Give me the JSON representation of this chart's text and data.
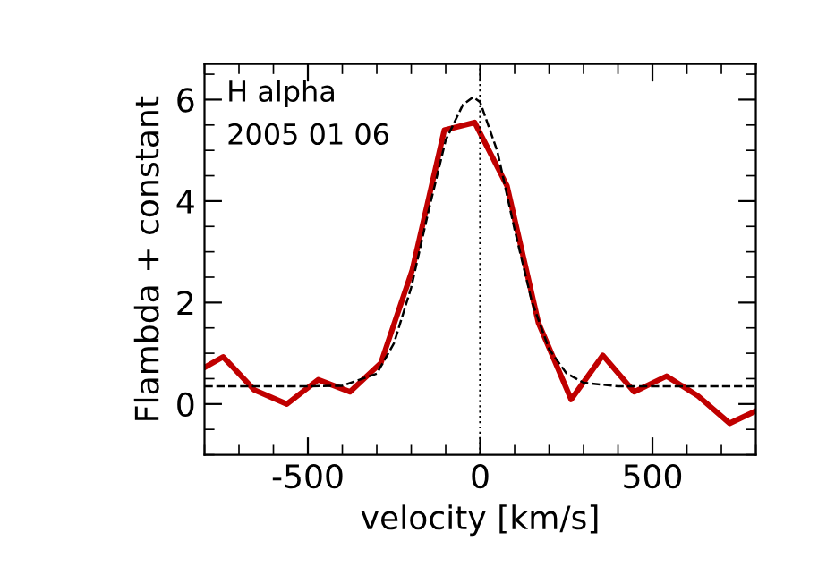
{
  "chart_data": {
    "type": "line",
    "xlabel": "velocity [km/s]",
    "ylabel": "Flambda + constant",
    "annotations": [
      "H alpha",
      "2005 01 06"
    ],
    "series": [
      {
        "color": "#c00000",
        "line_style": "solid",
        "x": [
          -800,
          -746,
          -656,
          -561,
          -470,
          -378,
          -288,
          -197,
          -104,
          -16,
          78,
          169,
          264,
          356,
          447,
          541,
          632,
          724,
          796
        ],
        "values": [
          0.72,
          0.93,
          0.28,
          0.0,
          0.48,
          0.24,
          0.81,
          2.64,
          5.4,
          5.55,
          4.3,
          1.6,
          0.09,
          0.96,
          0.24,
          0.55,
          0.16,
          -0.38,
          -0.15
        ]
      },
      {
        "color": "#000000",
        "line_style": "dashed",
        "x": [
          -800,
          -500,
          -400,
          -300,
          -250,
          -200,
          -150,
          -100,
          -50,
          -20,
          0,
          50,
          100,
          150,
          200,
          250,
          300,
          400,
          500,
          800
        ],
        "values": [
          0.35,
          0.35,
          0.36,
          0.6,
          1.2,
          2.3,
          3.8,
          5.2,
          5.9,
          6.05,
          5.95,
          4.98,
          3.44,
          2.02,
          1.08,
          0.61,
          0.42,
          0.35,
          0.35,
          0.35
        ]
      }
    ],
    "ref_lines": [
      {
        "axis": "x",
        "value": 0,
        "color": "#000000",
        "line_style": "dotted"
      }
    ],
    "xlim": [
      -800,
      800
    ],
    "xticks": [
      -500,
      0,
      500
    ],
    "ylim": [
      -1,
      6.7
    ],
    "yticks": [
      0,
      2,
      4,
      6
    ],
    "grid": false,
    "legend": false,
    "marker": "none"
  }
}
